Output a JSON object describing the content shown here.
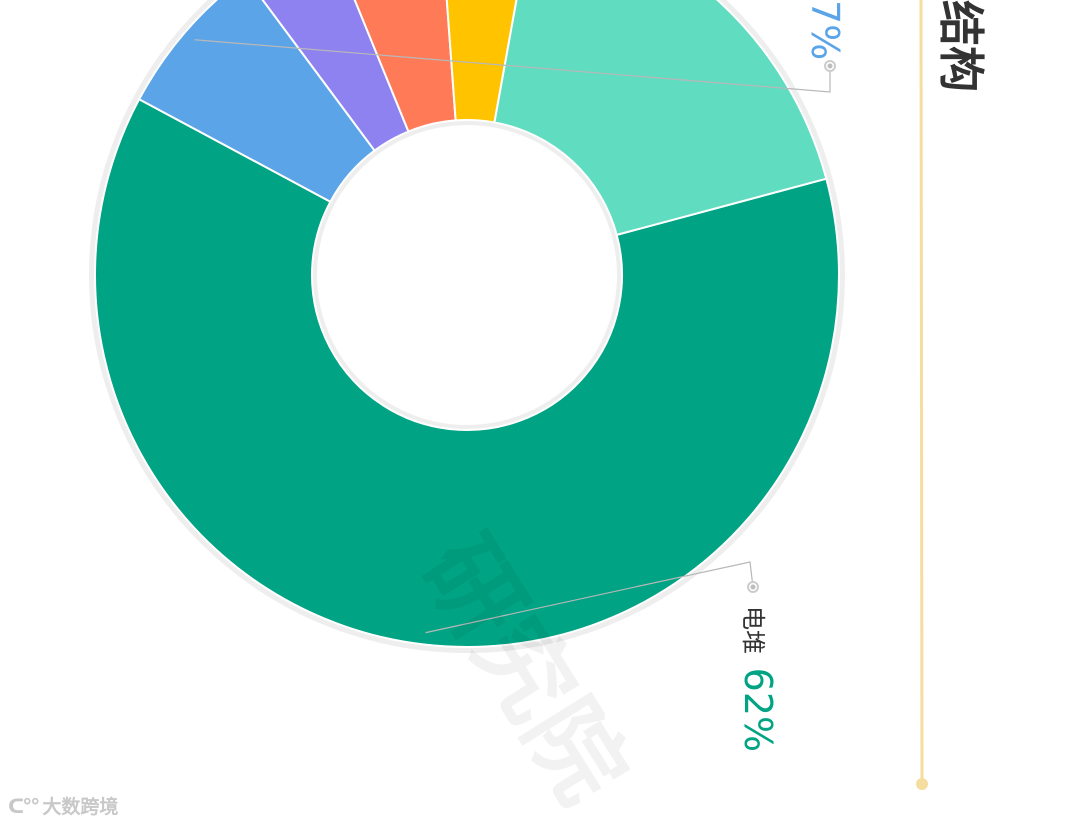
{
  "chart_data": {
    "type": "pie",
    "donut": true,
    "title": "结构",
    "slices": [
      {
        "label": "电堆",
        "value": 62,
        "color": "#00A383",
        "display": "62%"
      },
      {
        "label": "",
        "value": 7,
        "color": "#5BA4E8",
        "display": "7%"
      },
      {
        "label": "",
        "value": 4,
        "color": "#8E82F0",
        "display": ""
      },
      {
        "label": "",
        "value": 5,
        "color": "#FF7B57",
        "display": ""
      },
      {
        "label": "",
        "value": 4,
        "color": "#FFC300",
        "display": ""
      },
      {
        "label": "",
        "value": 18,
        "color": "#60DCC0",
        "display": ""
      }
    ]
  },
  "colors": {
    "timeline": "#F5DDA0",
    "ring_track": "#EEEEEE",
    "leader": "#B8B8B8"
  },
  "watermark": {
    "logo_text": "大数跨境",
    "center_text": "研究院"
  }
}
